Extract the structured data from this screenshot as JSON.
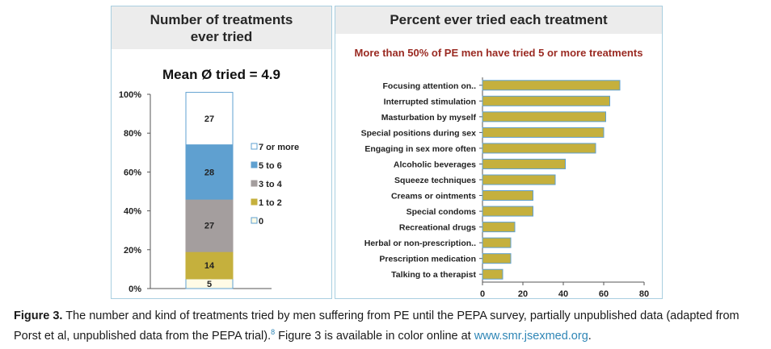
{
  "left_panel": {
    "title_line1": "Number of treatments",
    "title_line2": "ever tried",
    "mean_label": "Mean Ø tried = 4.9"
  },
  "right_panel": {
    "title": "Percent ever tried each treatment",
    "subtitle": "More than 50% of PE men have tried 5 or more treatments"
  },
  "chart_data": [
    {
      "type": "bar",
      "stacked": true,
      "orientation": "vertical",
      "title": "Number of treatments ever tried",
      "annotation": "Mean Ø tried = 4.9",
      "y_ticks": [
        "0%",
        "20%",
        "40%",
        "60%",
        "80%",
        "100%"
      ],
      "ylim": [
        0,
        100
      ],
      "legend_position": "right",
      "series": [
        {
          "name": "0",
          "value": 5,
          "color": "#fffbe6"
        },
        {
          "name": "1 to 2",
          "value": 14,
          "color": "#c5b03d"
        },
        {
          "name": "3 to 4",
          "value": 27,
          "color": "#a49e9e"
        },
        {
          "name": "5 to 6",
          "value": 28,
          "color": "#5fa0d0"
        },
        {
          "name": "7 or more",
          "value": 27,
          "color": "#ffffff"
        }
      ],
      "legend_order": [
        "7 or more",
        "5 to 6",
        "3 to 4",
        "1 to 2",
        "0"
      ]
    },
    {
      "type": "bar",
      "orientation": "horizontal",
      "title": "Percent ever tried each treatment",
      "subtitle": "More than 50% of PE men have tried 5 or more treatments",
      "categories": [
        "Focusing attention on..",
        "Interrupted stimulation",
        "Masturbation by myself",
        "Special positions during sex",
        "Engaging in sex more often",
        "Alcoholic beverages",
        "Squeeze techniques",
        "Creams or ointments",
        "Special condoms",
        "Recreational drugs",
        "Herbal or non-prescription..",
        "Prescription medication",
        "Talking to a therapist"
      ],
      "values": [
        68,
        63,
        61,
        60,
        56,
        41,
        36,
        25,
        25,
        16,
        14,
        14,
        10
      ],
      "xlim": [
        0,
        80
      ],
      "x_ticks": [
        "0",
        "20",
        "40",
        "60",
        "80"
      ],
      "bar_color": "#c5b03d",
      "bar_edge_color": "#5fa0d0"
    }
  ],
  "caption": {
    "label": "Figure 3.",
    "text": " The number and kind of treatments tried by men suffering from PE until the PEPA survey, partially unpublished data (adapted from Porst et al, unpublished data from the PEPA trial).",
    "ref": "8",
    "text2": " Figure 3 is available in color online at ",
    "link": "www.smr.jsexmed.org",
    "end": "."
  }
}
